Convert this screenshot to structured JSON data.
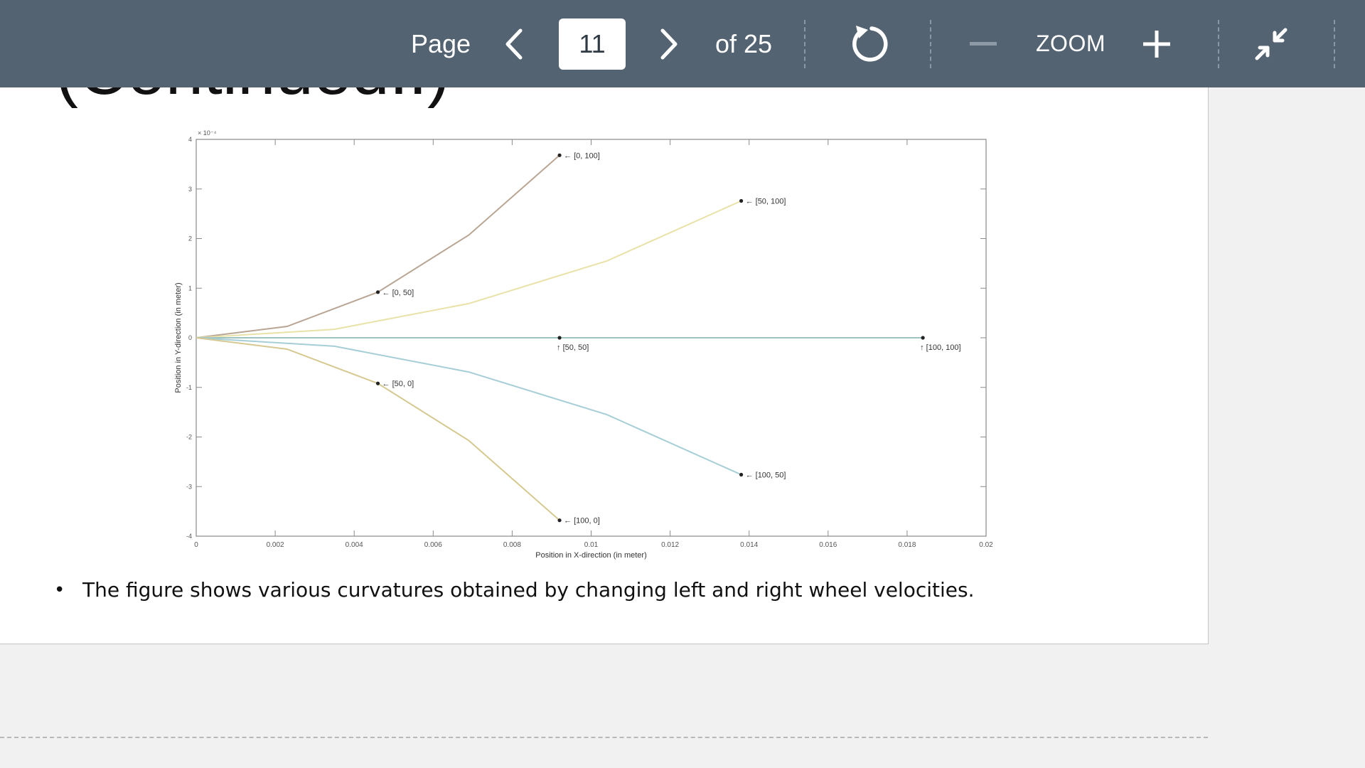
{
  "toolbar": {
    "page_label": "Page",
    "current_page": "11",
    "total_label": "of 25",
    "zoom_label": "ZOOM",
    "icons": [
      "chevron-left-icon",
      "chevron-right-icon",
      "rotate-icon",
      "minus-icon",
      "plus-icon",
      "exit-fullscreen-icon"
    ]
  },
  "slide": {
    "heading": "(Continued..)",
    "bullet": "The figure shows various curvatures obtained by changing left and right wheel velocities."
  },
  "chart_data": {
    "type": "line",
    "title": "",
    "xlabel": "Position in X-direction (in meter)",
    "ylabel": "Position in Y-direction (in meter)",
    "y_scale_label": "× 10⁻⁴",
    "xlim": [
      0,
      0.02
    ],
    "ylim": [
      -4,
      4
    ],
    "x_ticks": [
      "0",
      "0.002",
      "0.004",
      "0.006",
      "0.008",
      "0.01",
      "0.012",
      "0.014",
      "0.016",
      "0.018",
      "0.02"
    ],
    "y_ticks": [
      "-4",
      "-3",
      "-2",
      "-1",
      "0",
      "1",
      "2",
      "3",
      "4"
    ],
    "grid": false,
    "series": [
      {
        "color": "#b9a593",
        "x": [
          0,
          0.0023,
          0.0046,
          0.0069,
          0.0092
        ],
        "y": [
          0,
          0.23,
          0.92,
          2.07,
          3.68
        ]
      },
      {
        "color": "#e9e2a8",
        "x": [
          0,
          0.0035,
          0.0069,
          0.0104,
          0.0138
        ],
        "y": [
          0,
          0.17,
          0.69,
          1.55,
          2.76
        ]
      },
      {
        "color": "#9fc3bf",
        "x": [
          0,
          0.0046,
          0.0092,
          0.0138,
          0.0184
        ],
        "y": [
          0,
          0,
          0,
          0,
          0
        ]
      },
      {
        "color": "#a6ced6",
        "x": [
          0,
          0.0035,
          0.0069,
          0.0104,
          0.0138
        ],
        "y": [
          0,
          -0.17,
          -0.69,
          -1.55,
          -2.76
        ]
      },
      {
        "color": "#d5c890",
        "x": [
          0,
          0.0023,
          0.0046,
          0.0069,
          0.0092
        ],
        "y": [
          0,
          -0.23,
          -0.92,
          -2.07,
          -3.68
        ]
      }
    ],
    "annotations": [
      {
        "text": "← [0, 100]",
        "x": 0.0092,
        "y": 3.68
      },
      {
        "text": "← [50, 100]",
        "x": 0.0138,
        "y": 2.76
      },
      {
        "text": "← [0, 50]",
        "x": 0.0046,
        "y": 0.92
      },
      {
        "text": "↑ [50, 50]",
        "x": 0.0092,
        "y": 0
      },
      {
        "text": "↑ [100, 100]",
        "x": 0.0184,
        "y": 0
      },
      {
        "text": "← [50, 0]",
        "x": 0.0046,
        "y": -0.92
      },
      {
        "text": "← [100, 50]",
        "x": 0.0138,
        "y": -2.76
      },
      {
        "text": "← [100, 0]",
        "x": 0.0092,
        "y": -3.68
      }
    ]
  }
}
